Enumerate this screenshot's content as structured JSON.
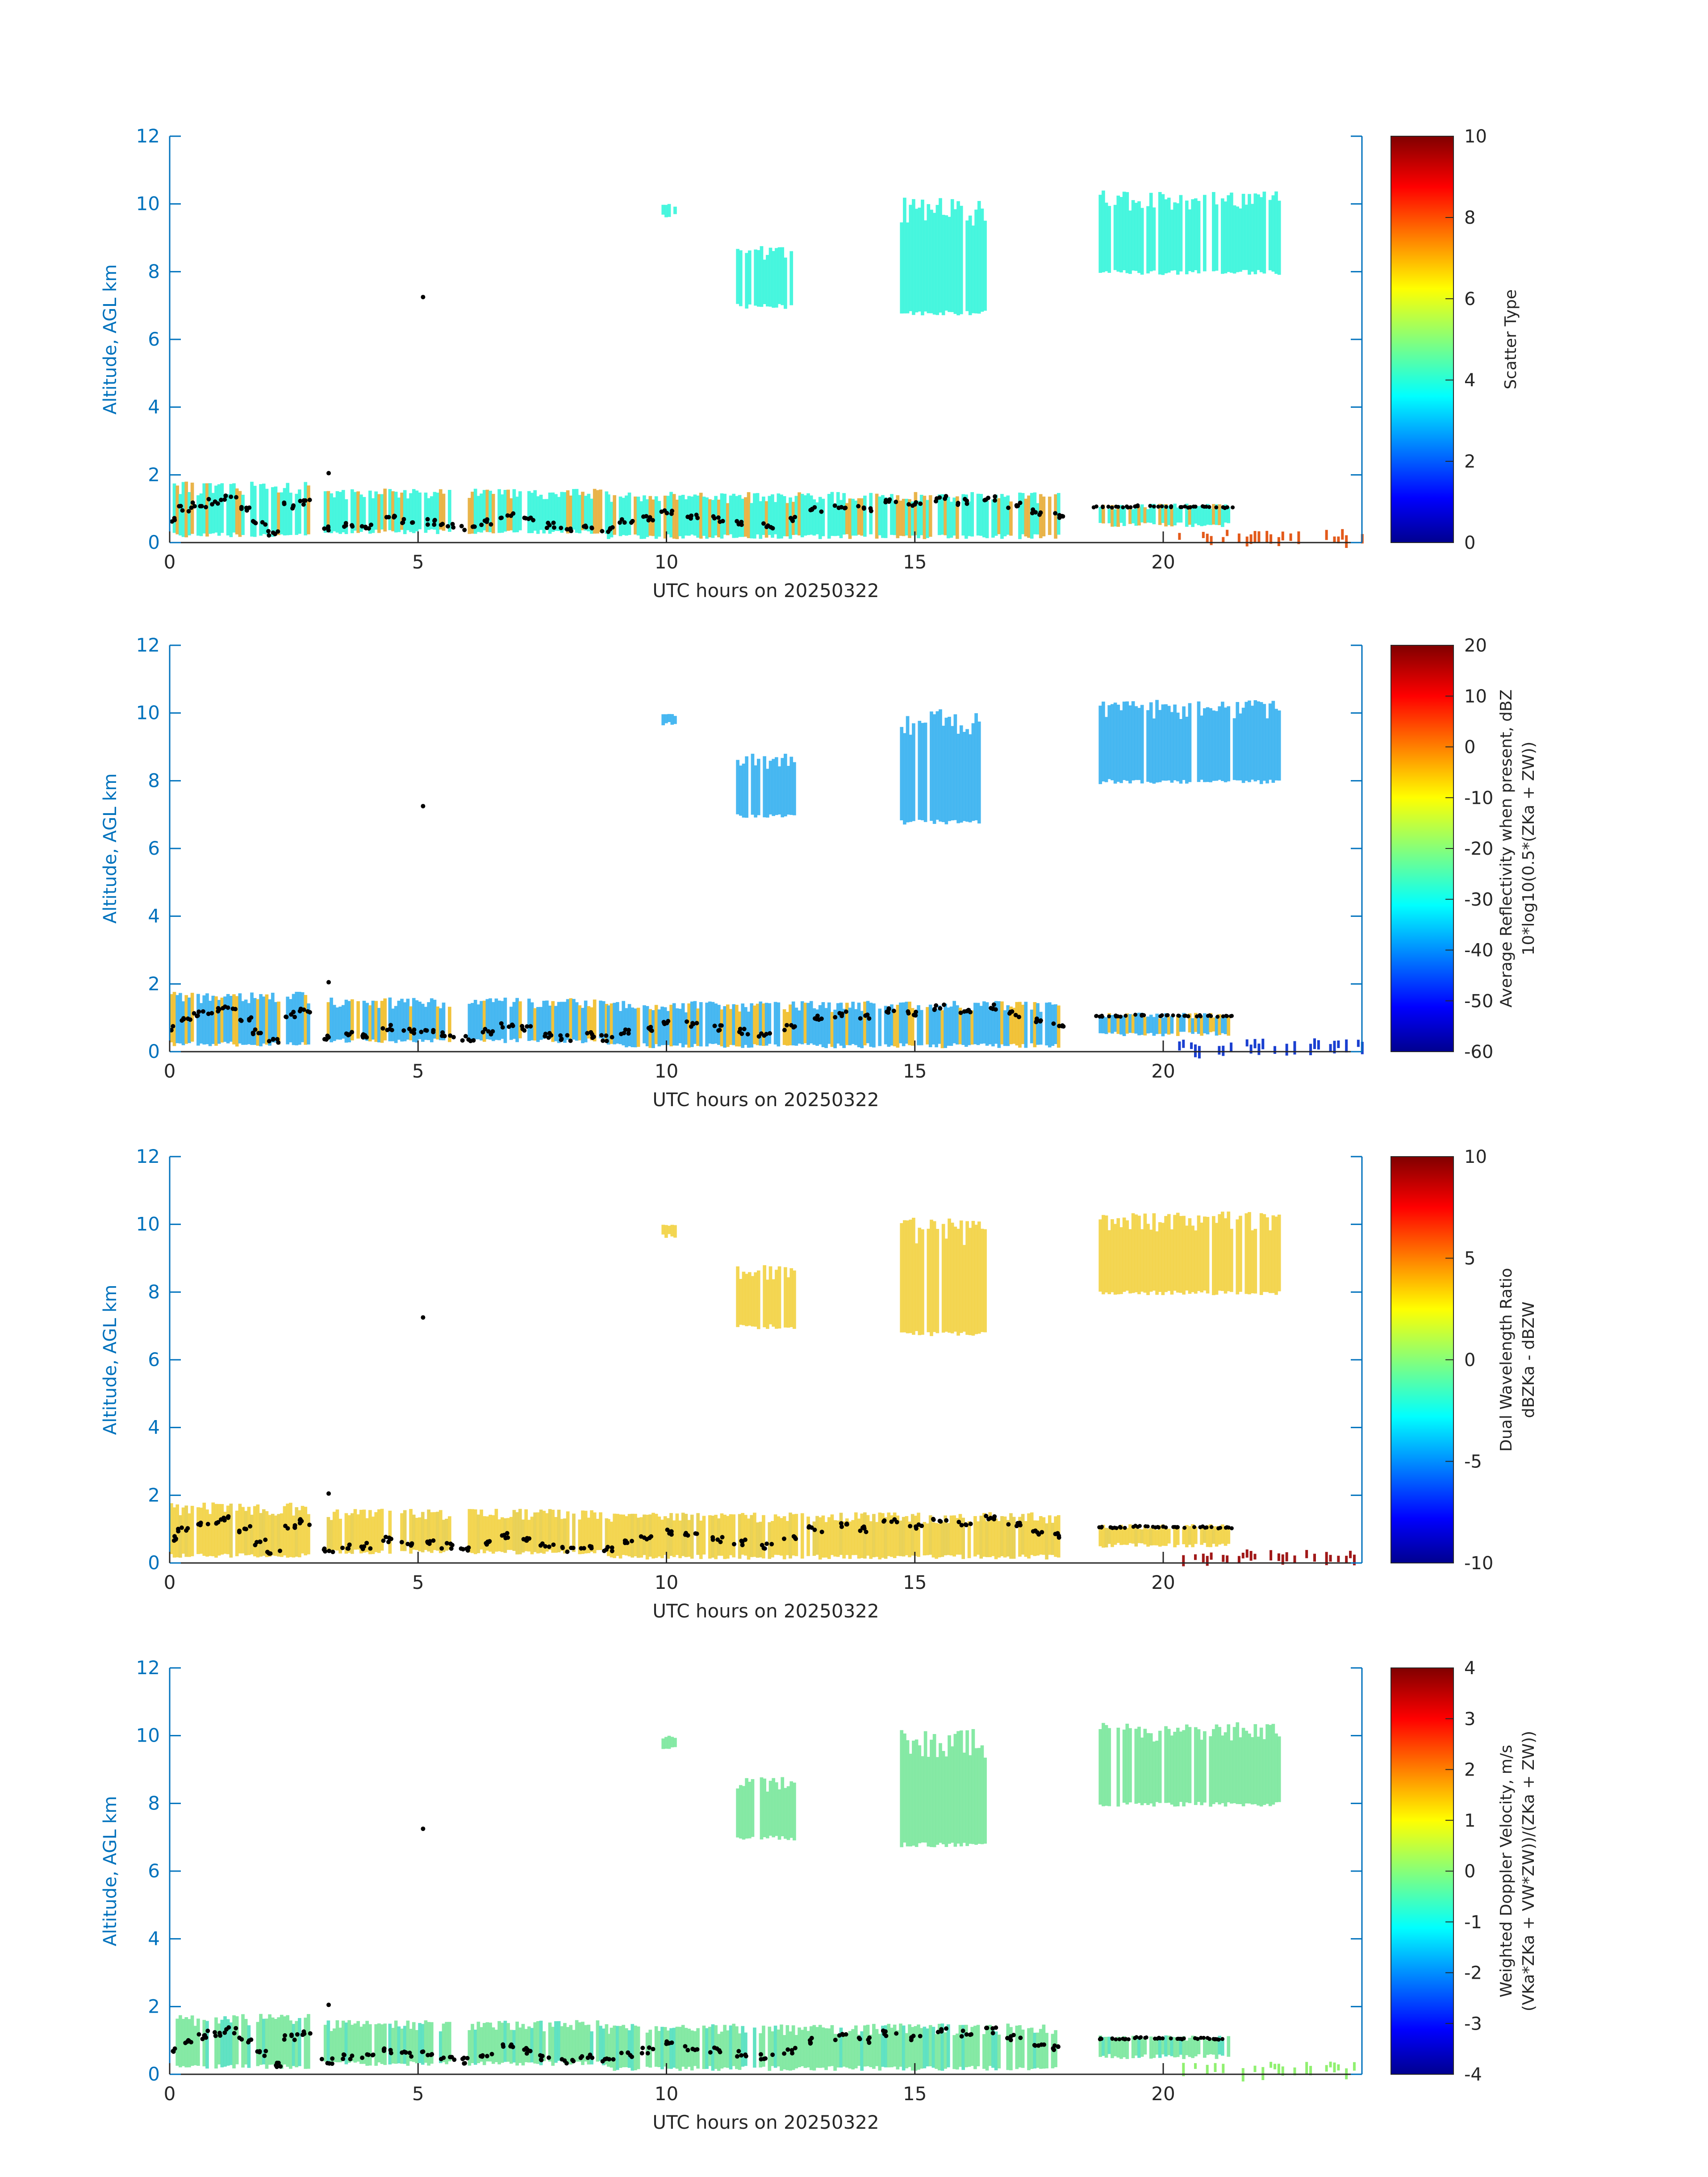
{
  "figure": {
    "xlabel": "UTC hours on 20250322",
    "ylabel": "Altitude, AGL km",
    "axis_color": "#0072bd",
    "bg_color": "#ffffff"
  },
  "chart_data": [
    {
      "type": "heatmap",
      "panel": "scatter-type",
      "xlabel": "UTC hours on 20250322",
      "ylabel": "Altitude, AGL km",
      "xlim": [
        0,
        24
      ],
      "ylim": [
        0,
        12
      ],
      "xticks": [
        0,
        5,
        10,
        15,
        20
      ],
      "yticks": [
        0,
        2,
        4,
        6,
        8,
        10,
        12
      ],
      "colorbar": {
        "label_lines": [
          "Scatter Type"
        ],
        "range": [
          0,
          10
        ],
        "ticks": [
          "0",
          "2",
          "4",
          "6",
          "8",
          "10"
        ]
      },
      "fill_color": "#3ff5dc",
      "low_fill_color": "#e8b040",
      "surface_color": "#e35a1a",
      "marker": "cloud-base-dots"
    },
    {
      "type": "heatmap",
      "panel": "reflectivity",
      "xlabel": "UTC hours on 20250322",
      "ylabel": "Altitude, AGL km",
      "xlim": [
        0,
        24
      ],
      "ylim": [
        0,
        12
      ],
      "xticks": [
        0,
        5,
        10,
        15,
        20
      ],
      "yticks": [
        0,
        2,
        4,
        6,
        8,
        10,
        12
      ],
      "colorbar": {
        "label_lines": [
          "Average Reflectivity when present, dBZ",
          "10*log10(0.5*(ZKa + ZW))"
        ],
        "range": [
          -60,
          20
        ],
        "ticks": [
          "-60",
          "-50",
          "-40",
          "-30",
          "-20",
          "-10",
          "0",
          "10",
          "20"
        ]
      },
      "fill_color": "#3fb4f0",
      "low_fill_color": "#f0c030",
      "surface_color": "#1a3fd0",
      "marker": "cloud-base-dots"
    },
    {
      "type": "heatmap",
      "panel": "dual-wavelength-ratio",
      "xlabel": "UTC hours on 20250322",
      "ylabel": "Altitude, AGL km",
      "xlim": [
        0,
        24
      ],
      "ylim": [
        0,
        12
      ],
      "xticks": [
        0,
        5,
        10,
        15,
        20
      ],
      "yticks": [
        0,
        2,
        4,
        6,
        8,
        10,
        12
      ],
      "colorbar": {
        "label_lines": [
          "Dual Wavelength Ratio",
          "dBZKa - dBZW"
        ],
        "range": [
          -10,
          10
        ],
        "ticks": [
          "-10",
          "-5",
          "0",
          "5",
          "10"
        ]
      },
      "fill_color": "#f2d44a",
      "low_fill_color": "#e8d050",
      "surface_color": "#a01818",
      "marker": "cloud-base-dots"
    },
    {
      "type": "heatmap",
      "panel": "doppler-velocity",
      "xlabel": "UTC hours on 20250322",
      "ylabel": "Altitude, AGL km",
      "xlim": [
        0,
        24
      ],
      "ylim": [
        0,
        12
      ],
      "xticks": [
        0,
        5,
        10,
        15,
        20
      ],
      "yticks": [
        0,
        2,
        4,
        6,
        8,
        10,
        12
      ],
      "colorbar": {
        "label_lines": [
          "Weighted Doppler Velocity, m/s",
          "(VKa*ZKa + VW*ZW))/(ZKa + ZW))"
        ],
        "range": [
          -4,
          4
        ],
        "ticks": [
          "-4",
          "-3",
          "-2",
          "-1",
          "0",
          "1",
          "2",
          "3",
          "4"
        ]
      },
      "fill_color": "#7fe8a0",
      "low_fill_color": "#58e0c0",
      "surface_color": "#90f070",
      "marker": "cloud-base-dots"
    }
  ],
  "echo_regions": [
    {
      "x0": 0.0,
      "x1": 2.8,
      "ybot": 0.15,
      "ytop": 1.8
    },
    {
      "x0": 3.1,
      "x1": 4.3,
      "ybot": 0.25,
      "ytop": 1.6
    },
    {
      "x0": 4.4,
      "x1": 5.6,
      "ybot": 0.25,
      "ytop": 1.6
    },
    {
      "x0": 6.0,
      "x1": 8.8,
      "ybot": 0.25,
      "ytop": 1.6
    },
    {
      "x0": 8.8,
      "x1": 17.9,
      "ybot": 0.1,
      "ytop": 1.5
    },
    {
      "x0": 18.7,
      "x1": 21.3,
      "ybot": 0.45,
      "ytop": 1.15
    },
    {
      "x0": 9.9,
      "x1": 10.2,
      "ybot": 9.6,
      "ytop": 10.0
    },
    {
      "x0": 11.4,
      "x1": 12.6,
      "ybot": 6.9,
      "ytop": 8.8
    },
    {
      "x0": 14.7,
      "x1": 16.4,
      "ybot": 6.7,
      "ytop": 10.2
    },
    {
      "x0": 18.7,
      "x1": 22.3,
      "ybot": 7.9,
      "ytop": 10.4
    }
  ],
  "surface_echo": {
    "x0": 20.3,
    "x1": 24.0,
    "ytop": 0.4
  },
  "cloud_base": {
    "x": [
      0.0,
      0.3,
      0.6,
      0.9,
      1.2,
      1.5,
      1.8,
      2.1,
      2.4,
      2.7,
      3.2,
      3.6,
      4.0,
      4.4,
      4.8,
      5.2,
      5.6,
      6.0,
      6.4,
      6.8,
      7.2,
      7.6,
      8.0,
      8.4,
      8.8,
      9.2,
      9.6,
      10.0,
      10.5,
      11.0,
      11.5,
      12.0,
      12.5,
      13.0,
      13.5,
      14.0,
      14.5,
      15.0,
      15.5,
      16.0,
      16.5,
      17.0,
      17.5,
      17.9
    ],
    "y": [
      0.7,
      1.0,
      1.1,
      1.2,
      1.3,
      1.0,
      0.6,
      0.3,
      1.1,
      1.2,
      0.4,
      0.5,
      0.5,
      0.7,
      0.6,
      0.6,
      0.5,
      0.4,
      0.6,
      0.8,
      0.7,
      0.5,
      0.4,
      0.5,
      0.4,
      0.6,
      0.7,
      0.9,
      0.8,
      0.7,
      0.6,
      0.5,
      0.7,
      1.0,
      1.1,
      1.0,
      1.2,
      1.1,
      1.3,
      1.2,
      1.3,
      1.1,
      0.9,
      0.8
    ],
    "upper_x": [
      18.8,
      19.2,
      19.6,
      20.0,
      20.4,
      20.8,
      21.2
    ],
    "upper_y": [
      1.05,
      1.05,
      1.08,
      1.06,
      1.05,
      1.06,
      1.04
    ],
    "isolated_points": [
      {
        "x": 5.1,
        "y": 7.25
      },
      {
        "x": 3.2,
        "y": 2.05
      }
    ]
  }
}
